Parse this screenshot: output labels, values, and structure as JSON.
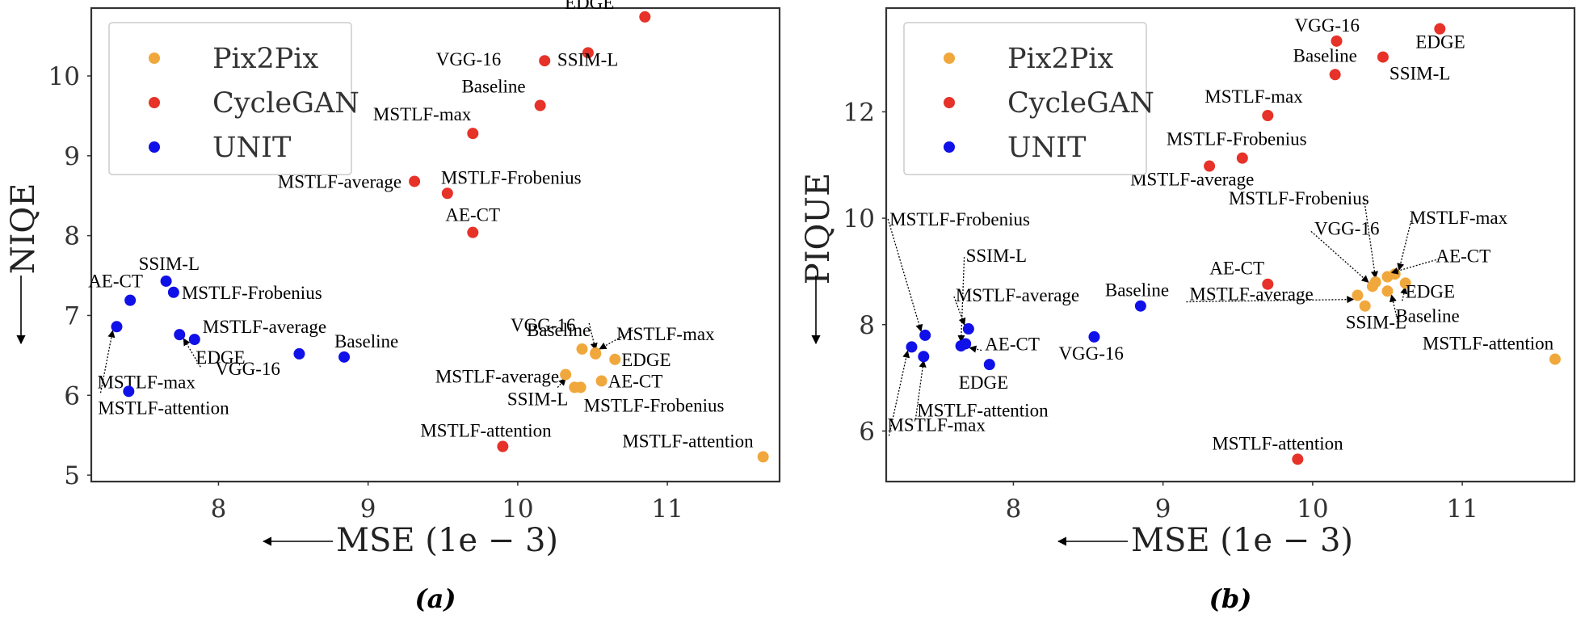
{
  "colors": {
    "Pix2Pix": "#f0a83c",
    "CycleGAN": "#e63228",
    "UNIT": "#1010e8"
  },
  "chart_data": [
    {
      "type": "scatter",
      "panel_label": "(a)",
      "xlabel": "MSE (1e − 3)",
      "ylabel": "NIQE",
      "xlim": [
        7.15,
        11.75
      ],
      "ylim": [
        4.92,
        10.85
      ],
      "xticks": [
        8,
        9,
        10,
        11
      ],
      "yticks": [
        5,
        6,
        7,
        8,
        9,
        10
      ],
      "legend": {
        "position": "top-left",
        "entries": [
          "Pix2Pix",
          "CycleGAN",
          "UNIT"
        ]
      },
      "series": [
        {
          "name": "Pix2Pix",
          "points": [
            {
              "label": "Baseline",
              "x": 10.52,
              "y": 6.52
            },
            {
              "label": "VGG-16",
              "x": 10.43,
              "y": 6.58
            },
            {
              "label": "MSTLF-max",
              "x": 10.52,
              "y": 6.53
            },
            {
              "label": "MSTLF-average",
              "x": 10.32,
              "y": 6.26
            },
            {
              "label": "EDGE",
              "x": 10.65,
              "y": 6.45
            },
            {
              "label": "SSIM-L",
              "x": 10.38,
              "y": 6.1
            },
            {
              "label": "AE-CT",
              "x": 10.56,
              "y": 6.18
            },
            {
              "label": "MSTLF-Frobenius",
              "x": 10.42,
              "y": 6.1
            },
            {
              "label": "MSTLF-attention",
              "x": 11.64,
              "y": 5.23
            }
          ]
        },
        {
          "name": "CycleGAN",
          "points": [
            {
              "label": "EDGE",
              "x": 10.85,
              "y": 10.74
            },
            {
              "label": "VGG-16",
              "x": 10.18,
              "y": 10.19
            },
            {
              "label": "SSIM-L",
              "x": 10.47,
              "y": 10.29
            },
            {
              "label": "Baseline",
              "x": 10.15,
              "y": 9.63
            },
            {
              "label": "MSTLF-max",
              "x": 9.7,
              "y": 9.28
            },
            {
              "label": "MSTLF-average",
              "x": 9.31,
              "y": 8.68
            },
            {
              "label": "MSTLF-Frobenius",
              "x": 9.53,
              "y": 8.53
            },
            {
              "label": "AE-CT",
              "x": 9.7,
              "y": 8.04
            },
            {
              "label": "MSTLF-attention",
              "x": 9.9,
              "y": 5.36
            }
          ]
        },
        {
          "name": "UNIT",
          "points": [
            {
              "label": "SSIM-L",
              "x": 7.65,
              "y": 7.43
            },
            {
              "label": "AE-CT",
              "x": 7.41,
              "y": 7.19
            },
            {
              "label": "MSTLF-Frobenius",
              "x": 7.7,
              "y": 7.29
            },
            {
              "label": "MSTLF-average",
              "x": 7.84,
              "y": 6.7
            },
            {
              "label": "EDGE",
              "x": 7.74,
              "y": 6.76
            },
            {
              "label": "MSTLF-max",
              "x": 7.32,
              "y": 6.86
            },
            {
              "label": "Baseline",
              "x": 8.84,
              "y": 6.48
            },
            {
              "label": "VGG-16",
              "x": 8.54,
              "y": 6.52
            },
            {
              "label": "MSTLF-attention",
              "x": 7.4,
              "y": 6.05
            }
          ]
        }
      ]
    },
    {
      "type": "scatter",
      "panel_label": "(b)",
      "xlabel": "MSE (1e − 3)",
      "ylabel": "PIQUE",
      "xlim": [
        7.15,
        11.75
      ],
      "ylim": [
        5.05,
        13.95
      ],
      "xticks": [
        8,
        9,
        10,
        11
      ],
      "yticks": [
        6,
        8,
        10,
        12
      ],
      "legend": {
        "position": "top-left",
        "entries": [
          "Pix2Pix",
          "CycleGAN",
          "UNIT"
        ]
      },
      "series": [
        {
          "name": "Pix2Pix",
          "points": [
            {
              "label": "MSTLF-Frobenius",
              "x": 10.42,
              "y": 8.8
            },
            {
              "label": "VGG-16",
              "x": 10.4,
              "y": 8.72
            },
            {
              "label": "MSTLF-max",
              "x": 10.55,
              "y": 8.95
            },
            {
              "label": "AE-CT",
              "x": 10.5,
              "y": 8.9
            },
            {
              "label": "EDGE",
              "x": 10.62,
              "y": 8.78
            },
            {
              "label": "MSTLF-average",
              "x": 10.3,
              "y": 8.55
            },
            {
              "label": "Baseline",
              "x": 10.5,
              "y": 8.63
            },
            {
              "label": "SSIM-L",
              "x": 10.35,
              "y": 8.35
            },
            {
              "label": "MSTLF-attention",
              "x": 11.62,
              "y": 7.35
            }
          ]
        },
        {
          "name": "CycleGAN",
          "points": [
            {
              "label": "VGG-16",
              "x": 10.16,
              "y": 13.33
            },
            {
              "label": "EDGE",
              "x": 10.85,
              "y": 13.56
            },
            {
              "label": "Baseline",
              "x": 10.15,
              "y": 12.7
            },
            {
              "label": "SSIM-L",
              "x": 10.47,
              "y": 13.03
            },
            {
              "label": "MSTLF-max",
              "x": 9.7,
              "y": 11.93
            },
            {
              "label": "MSTLF-Frobenius",
              "x": 9.53,
              "y": 11.13
            },
            {
              "label": "MSTLF-average",
              "x": 9.31,
              "y": 10.98
            },
            {
              "label": "AE-CT",
              "x": 9.7,
              "y": 8.76
            },
            {
              "label": "MSTLF-attention",
              "x": 9.9,
              "y": 5.47
            }
          ]
        },
        {
          "name": "UNIT",
          "points": [
            {
              "label": "MSTLF-Frobenius",
              "x": 7.41,
              "y": 7.8
            },
            {
              "label": "SSIM-L",
              "x": 7.65,
              "y": 7.6
            },
            {
              "label": "MSTLF-average",
              "x": 7.7,
              "y": 7.92
            },
            {
              "label": "AE-CT",
              "x": 7.68,
              "y": 7.64
            },
            {
              "label": "Baseline",
              "x": 8.85,
              "y": 8.35
            },
            {
              "label": "VGG-16",
              "x": 8.54,
              "y": 7.77
            },
            {
              "label": "EDGE",
              "x": 7.84,
              "y": 7.25
            },
            {
              "label": "MSTLF-attention",
              "x": 7.4,
              "y": 7.4
            },
            {
              "label": "MSTLF-max",
              "x": 7.32,
              "y": 7.58
            }
          ]
        }
      ]
    }
  ]
}
